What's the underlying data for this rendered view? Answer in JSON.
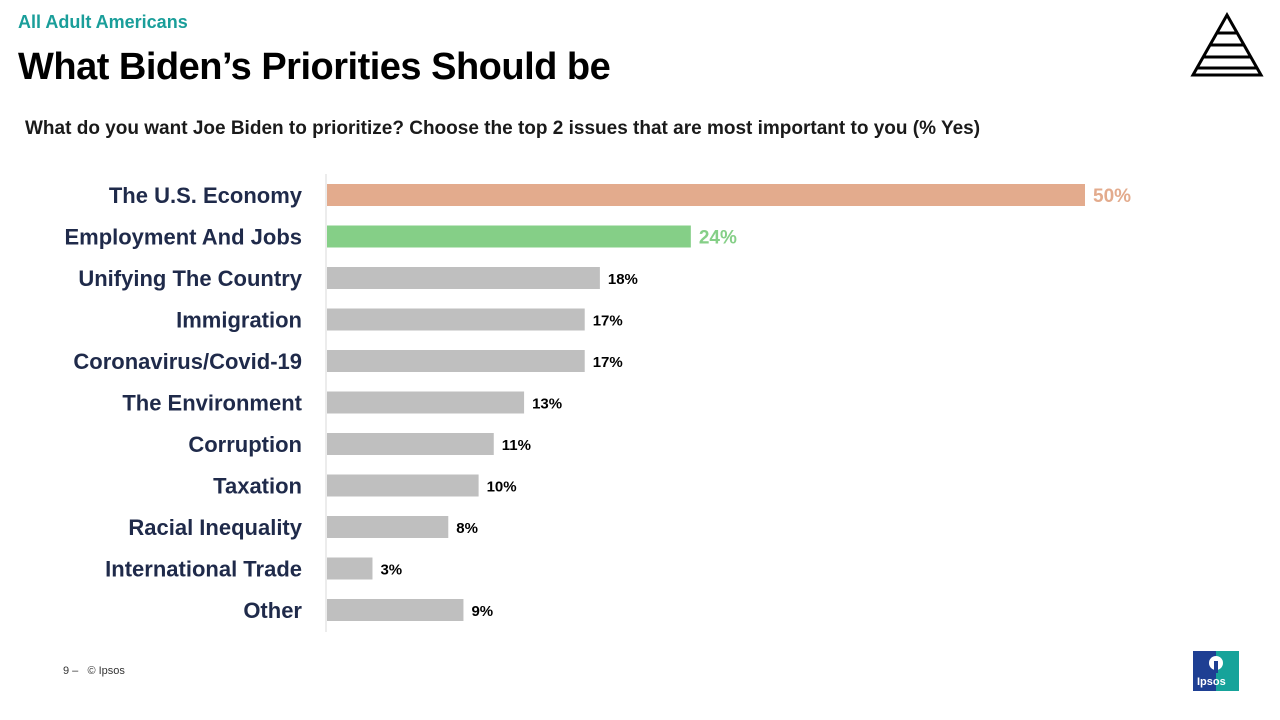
{
  "header": {
    "kicker": "All Adult Americans",
    "title": "What Biden’s Priorities Should be",
    "question": "What do you want Joe Biden to prioritize? Choose the top 2 issues that are most important to you (% Yes)"
  },
  "footer": {
    "page": "9 –",
    "copyright": "© Ipsos",
    "brand": "Ipsos"
  },
  "colors": {
    "highlight_1": "#e3ab8d",
    "highlight_2": "#85cf87",
    "default_bar": "#bfbfbf",
    "label_text": "#1f2a4a",
    "kicker": "#1a9e9a",
    "brand_blue": "#1e3f93",
    "brand_teal": "#16a39a"
  },
  "chart_data": {
    "type": "bar",
    "orientation": "horizontal",
    "categories": [
      "The U.S. Economy",
      "Employment And Jobs",
      "Unifying The Country",
      "Immigration",
      "Coronavirus/Covid-19",
      "The Environment",
      "Corruption",
      "Taxation",
      "Racial Inequality",
      "International Trade",
      "Other"
    ],
    "values": [
      50,
      24,
      18,
      17,
      17,
      13,
      11,
      10,
      8,
      3,
      9
    ],
    "value_labels": [
      "50%",
      "24%",
      "18%",
      "17%",
      "17%",
      "13%",
      "11%",
      "10%",
      "8%",
      "3%",
      "9%"
    ],
    "unit": "%",
    "xlim": [
      0,
      50
    ],
    "grid": false,
    "legend": "none"
  }
}
